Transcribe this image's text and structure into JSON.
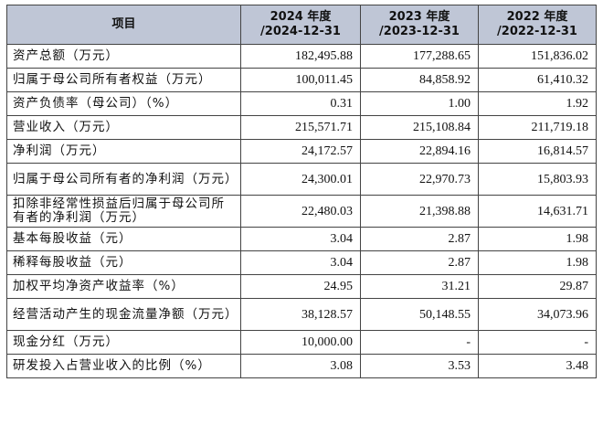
{
  "table": {
    "header": {
      "item": "项目",
      "col1_line1": "2024 年度",
      "col1_line2": "/2024-12-31",
      "col2_line1": "2023 年度",
      "col2_line2": "/2023-12-31",
      "col3_line1": "2022 年度",
      "col3_line2": "/2022-12-31"
    },
    "rows": [
      {
        "label": "资产总额（万元）",
        "v2024": "182,495.88",
        "v2023": "177,288.65",
        "v2022": "151,836.02"
      },
      {
        "label": "归属于母公司所有者权益（万元）",
        "v2024": "100,011.45",
        "v2023": "84,858.92",
        "v2022": "61,410.32"
      },
      {
        "label": "资产负债率（母公司）（%）",
        "v2024": "0.31",
        "v2023": "1.00",
        "v2022": "1.92"
      },
      {
        "label": "营业收入（万元）",
        "v2024": "215,571.71",
        "v2023": "215,108.84",
        "v2022": "211,719.18"
      },
      {
        "label": "净利润（万元）",
        "v2024": "24,172.57",
        "v2023": "22,894.16",
        "v2022": "16,814.57"
      },
      {
        "label": "归属于母公司所有者的净利润（万元）",
        "v2024": "24,300.01",
        "v2023": "22,970.73",
        "v2022": "15,803.93"
      },
      {
        "label": "扣除非经常性损益后归属于母公司所有者的净利润（万元）",
        "v2024": "22,480.03",
        "v2023": "21,398.88",
        "v2022": "14,631.71"
      },
      {
        "label": "基本每股收益（元）",
        "v2024": "3.04",
        "v2023": "2.87",
        "v2022": "1.98"
      },
      {
        "label": "稀释每股收益（元）",
        "v2024": "3.04",
        "v2023": "2.87",
        "v2022": "1.98"
      },
      {
        "label": "加权平均净资产收益率（%）",
        "v2024": "24.95",
        "v2023": "31.21",
        "v2022": "29.87"
      },
      {
        "label": "经营活动产生的现金流量净额（万元）",
        "v2024": "38,128.57",
        "v2023": "50,148.55",
        "v2022": "34,073.96"
      },
      {
        "label": "现金分红（万元）",
        "v2024": "10,000.00",
        "v2023": "-",
        "v2022": "-"
      },
      {
        "label": "研发投入占营业收入的比例（%）",
        "v2024": "3.08",
        "v2023": "3.53",
        "v2022": "3.48"
      }
    ]
  }
}
